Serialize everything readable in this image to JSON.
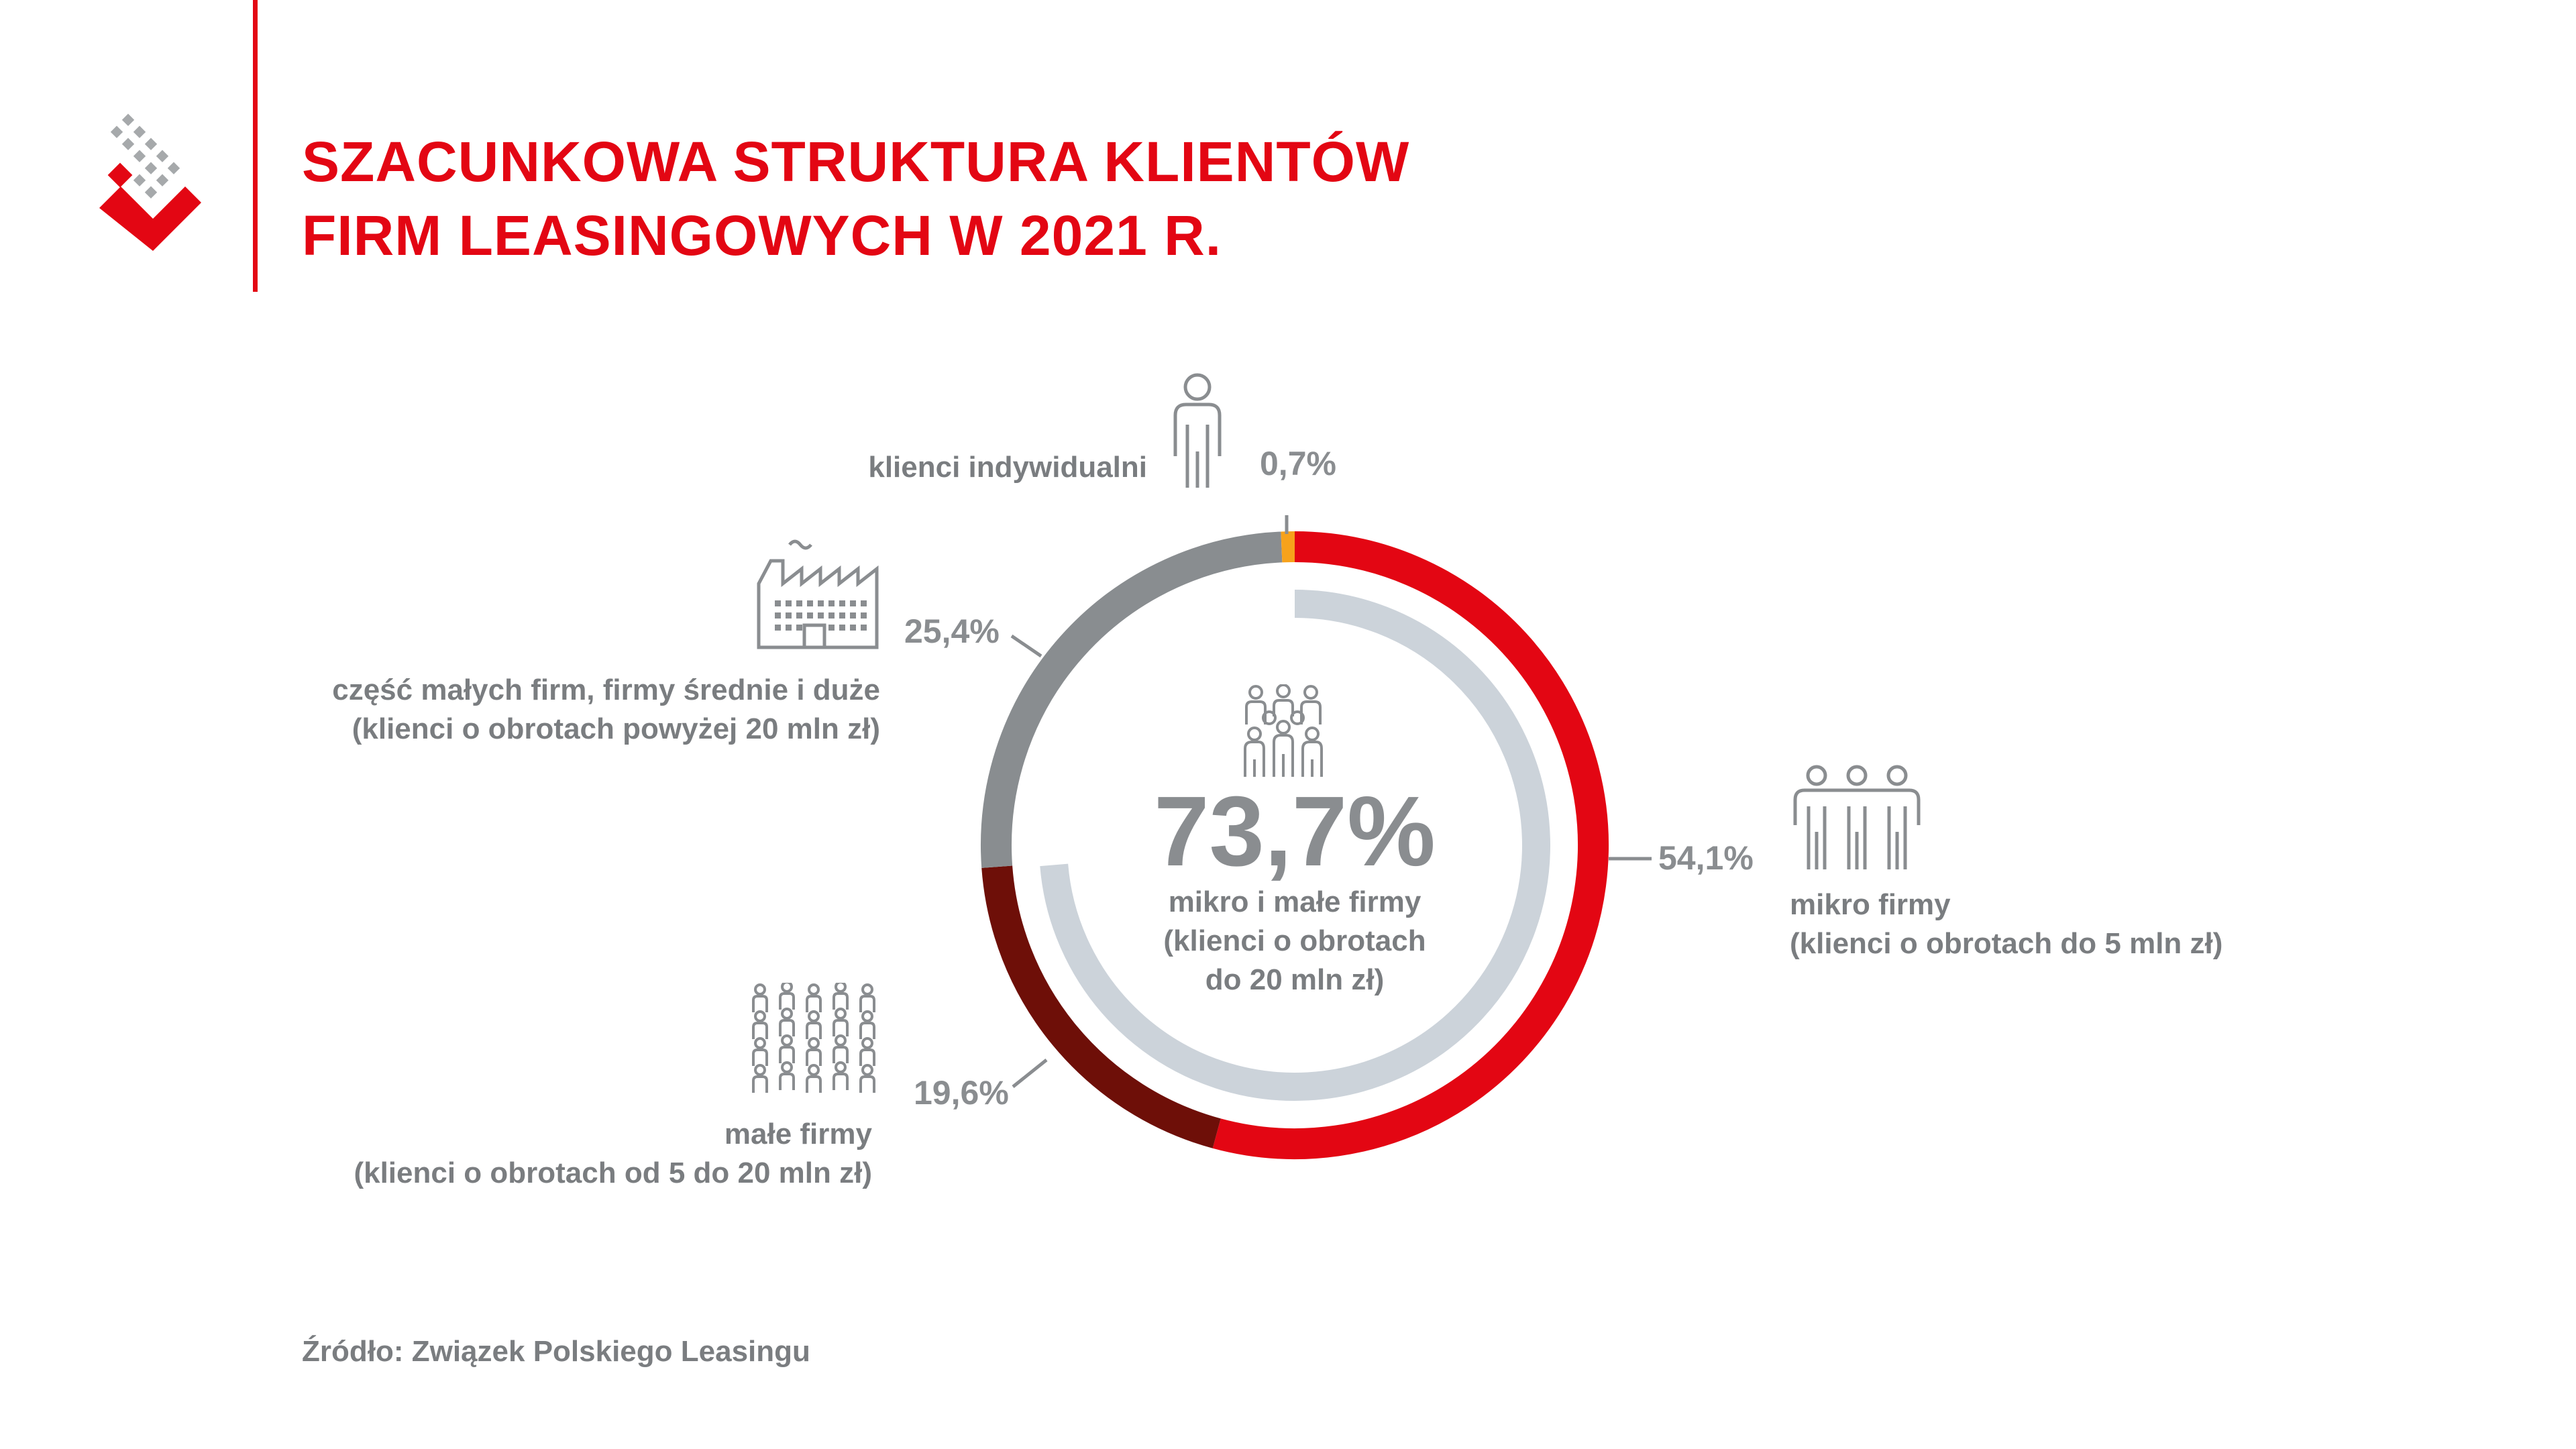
{
  "title": {
    "line1": "SZACUNKOWA STRUKTURA KLIENTÓW",
    "line2": "FIRM LEASINGOWYCH W 2021 R."
  },
  "source": "Źródło: Związek Polskiego Leasingu",
  "colors": {
    "brand_red": "#e30613",
    "mikro": "#e30613",
    "male": "#6e0f08",
    "srednie_duze": "#898d90",
    "indywidualni": "#f7a21b",
    "inner_ring": "#ccd3da",
    "text_gray": "#8a8d90"
  },
  "icons": {
    "logo": "brand-logo-icon",
    "indywidualni": "single-person-icon",
    "srednie_duze": "factory-icon",
    "mikro": "three-people-icon",
    "male": "crowd-icon",
    "center": "group-of-people-icon"
  },
  "chart_data": {
    "type": "pie",
    "variant": "donut",
    "title": "SZACUNKOWA STRUKTURA KLIENTÓW FIRM LEASINGOWYCH W 2021 R.",
    "series": [
      {
        "name": "mikro firmy",
        "description": "(klienci o obrotach do 5 mln zł)",
        "value": 54.1,
        "label": "54,1%"
      },
      {
        "name": "małe firmy",
        "description": "(klienci o obrotach od 5 do 20 mln zł)",
        "value": 19.6,
        "label": "19,6%"
      },
      {
        "name": "część małych firm, firmy średnie i duże",
        "description": "(klienci o obrotach powyżej 20 mln zł)",
        "value": 25.4,
        "label": "25,4%"
      },
      {
        "name": "klienci indywidualni",
        "description": "",
        "value": 0.7,
        "label": "0,7%"
      }
    ],
    "inner_summary": {
      "value": 73.7,
      "label": "73,7%",
      "line1": "mikro i małe firmy",
      "line2": "(klienci o obrotach",
      "line3": "do 20 mln zł)"
    }
  }
}
